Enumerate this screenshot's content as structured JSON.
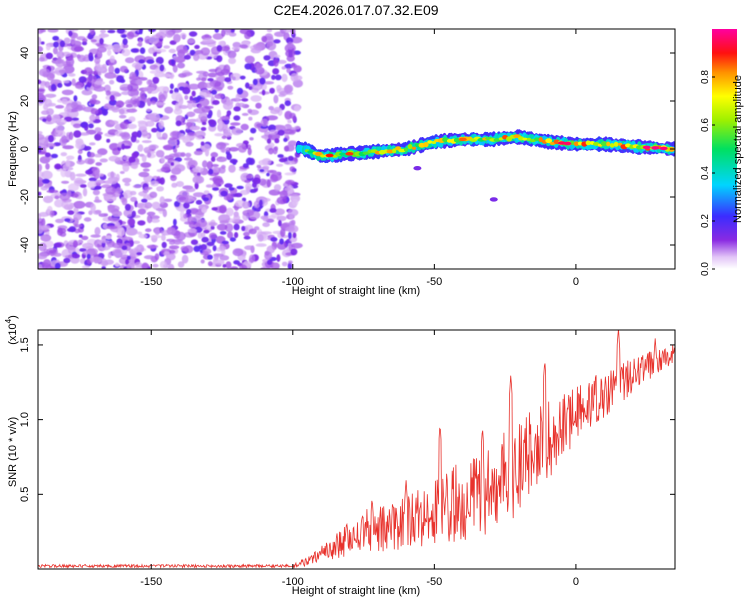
{
  "figure_title": "C2E4.2026.017.07.32.E09",
  "chart_data": [
    {
      "type": "heatmap",
      "xlabel": "Height of straight line (km)",
      "ylabel": "Frequency (Hz)",
      "xlim": [
        -190,
        35
      ],
      "ylim": [
        -50,
        50
      ],
      "x_ticks": [
        -150,
        -100,
        -50,
        0
      ],
      "y_ticks": [
        -40,
        -20,
        0,
        20,
        40
      ],
      "colorbar": {
        "label": "Normalized spectral amplitude",
        "range": [
          0,
          1
        ],
        "ticks": [
          "0.0",
          "0.2",
          "0.4",
          "0.6",
          "0.8"
        ],
        "tick_values": [
          0.0,
          0.2,
          0.4,
          0.6,
          0.8
        ],
        "colormap": "rainbow (white-violet-blue-cyan-green-yellow-orange-red-magenta)"
      },
      "regions": [
        {
          "description": "scattered low-amplitude noise",
          "x_range": [
            -190,
            -98
          ],
          "y_range": [
            -50,
            50
          ],
          "amplitude": [
            0.02,
            0.15
          ]
        },
        {
          "description": "narrow signal band near 0 Hz",
          "x_range": [
            -98,
            35
          ],
          "y_center": 0,
          "width_hz": 6,
          "amplitude": [
            0.3,
            1.0
          ]
        },
        {
          "description": "isolated weak blobs",
          "points": [
            [
              -56,
              -8
            ],
            [
              -29,
              -21
            ]
          ],
          "amplitude": [
            0.1,
            0.2
          ]
        }
      ],
      "ridge_trend": [
        {
          "x": -97,
          "y": 0.5
        },
        {
          "x": -90,
          "y": -3
        },
        {
          "x": -80,
          "y": -2
        },
        {
          "x": -70,
          "y": -1
        },
        {
          "x": -60,
          "y": 0
        },
        {
          "x": -50,
          "y": 3
        },
        {
          "x": -40,
          "y": 4
        },
        {
          "x": -30,
          "y": 4
        },
        {
          "x": -20,
          "y": 5
        },
        {
          "x": -10,
          "y": 3
        },
        {
          "x": 0,
          "y": 2
        },
        {
          "x": 10,
          "y": 2
        },
        {
          "x": 20,
          "y": 1
        },
        {
          "x": 35,
          "y": 0
        }
      ]
    },
    {
      "type": "line",
      "xlabel": "Height of straight line (km)",
      "ylabel": "SNR (10 * v/v)",
      "y_multiplier_label": "(x10",
      "y_multiplier_exp": "4",
      "xlim": [
        -190,
        35
      ],
      "ylim": [
        0,
        1.6
      ],
      "x_ticks": [
        -150,
        -100,
        -50,
        0
      ],
      "y_ticks": [
        0.5,
        1.0,
        1.5
      ],
      "y_tick_labels": [
        "0.5",
        "1.0",
        "1.5"
      ],
      "series": [
        {
          "color": "#e8322c",
          "envelope": [
            {
              "x": -190,
              "mean": 0.02,
              "spread": 0.01
            },
            {
              "x": -100,
              "mean": 0.02,
              "spread": 0.01
            },
            {
              "x": -95,
              "mean": 0.05,
              "spread": 0.03
            },
            {
              "x": -85,
              "mean": 0.15,
              "spread": 0.08
            },
            {
              "x": -75,
              "mean": 0.25,
              "spread": 0.15
            },
            {
              "x": -65,
              "mean": 0.28,
              "spread": 0.16
            },
            {
              "x": -55,
              "mean": 0.35,
              "spread": 0.2
            },
            {
              "x": -45,
              "mean": 0.42,
              "spread": 0.25
            },
            {
              "x": -35,
              "mean": 0.5,
              "spread": 0.3
            },
            {
              "x": -25,
              "mean": 0.6,
              "spread": 0.32
            },
            {
              "x": -15,
              "mean": 0.75,
              "spread": 0.32
            },
            {
              "x": -5,
              "mean": 0.95,
              "spread": 0.22
            },
            {
              "x": 5,
              "mean": 1.1,
              "spread": 0.18
            },
            {
              "x": 15,
              "mean": 1.25,
              "spread": 0.15
            },
            {
              "x": 25,
              "mean": 1.35,
              "spread": 0.1
            },
            {
              "x": 35,
              "mean": 1.45,
              "spread": 0.06
            }
          ],
          "peaks": [
            {
              "x": -72,
              "y": 0.48
            },
            {
              "x": -60,
              "y": 0.6
            },
            {
              "x": -48,
              "y": 0.97
            },
            {
              "x": -33,
              "y": 0.95
            },
            {
              "x": -23,
              "y": 1.3
            },
            {
              "x": -11,
              "y": 1.4
            },
            {
              "x": 15,
              "y": 1.62
            },
            {
              "x": 28,
              "y": 1.55
            }
          ]
        }
      ]
    }
  ],
  "colors": {
    "axis": "#000000",
    "line": "#e8322c",
    "background": "#ffffff"
  }
}
